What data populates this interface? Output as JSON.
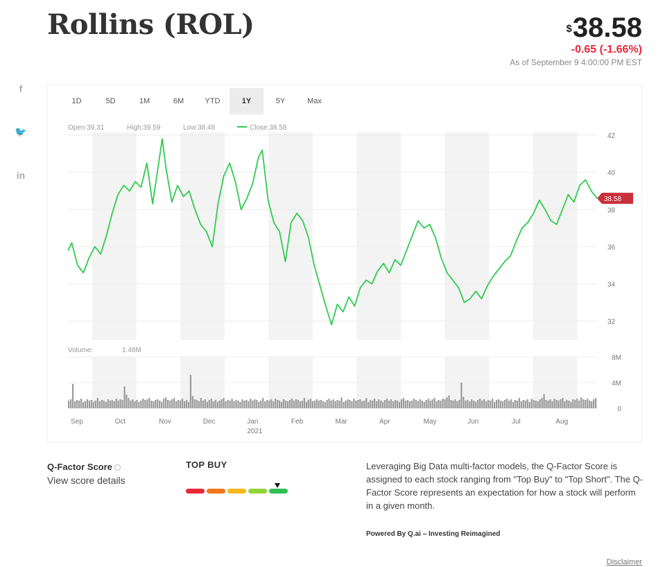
{
  "header": {
    "title": "Rollins (ROL)",
    "currency_symbol": "$",
    "price": "38.58",
    "change": "-0.65 (-1.66%)",
    "as_of": "As of September 9 4:00:00 PM EST"
  },
  "social": {
    "icons": [
      {
        "name": "facebook-icon",
        "glyph": "f"
      },
      {
        "name": "twitter-icon",
        "glyph": "🐦"
      },
      {
        "name": "linkedin-icon",
        "glyph": "in"
      }
    ]
  },
  "range_tabs": [
    "1D",
    "5D",
    "1M",
    "6M",
    "YTD",
    "1Y",
    "5Y",
    "Max"
  ],
  "active_range": "1Y",
  "legend": {
    "open": "Open:39.31",
    "high": "High:39.59",
    "low": "Low:38.48",
    "close": "Close:38.58",
    "volume_label": "Volume:",
    "volume_value": "1.48M"
  },
  "chart_data": {
    "type": "line",
    "price_axis": {
      "min": 31,
      "max": 42,
      "ticks": [
        32,
        34,
        36,
        38,
        40,
        42
      ]
    },
    "last_price_label": "38.58",
    "months": [
      "Sep",
      "Oct",
      "Nov",
      "Dec",
      "Jan",
      "Feb",
      "Mar",
      "Apr",
      "May",
      "Jun",
      "Jul",
      "Aug"
    ],
    "year_label": "2021",
    "price_series": {
      "color": "#2fcb4f",
      "points": [
        [
          0,
          35.8
        ],
        [
          2,
          36.2
        ],
        [
          5,
          35.0
        ],
        [
          8,
          34.6
        ],
        [
          11,
          35.4
        ],
        [
          14,
          36.0
        ],
        [
          17,
          35.6
        ],
        [
          20,
          36.6
        ],
        [
          23,
          37.8
        ],
        [
          26,
          38.8
        ],
        [
          29,
          39.3
        ],
        [
          32,
          39.0
        ],
        [
          35,
          39.5
        ],
        [
          38,
          39.2
        ],
        [
          41,
          40.5
        ],
        [
          44,
          38.3
        ],
        [
          47,
          40.4
        ],
        [
          49,
          41.8
        ],
        [
          51,
          40.2
        ],
        [
          54,
          38.4
        ],
        [
          57,
          39.3
        ],
        [
          60,
          38.7
        ],
        [
          63,
          39.0
        ],
        [
          66,
          38.0
        ],
        [
          69,
          37.2
        ],
        [
          72,
          36.8
        ],
        [
          75,
          36.0
        ],
        [
          78,
          38.3
        ],
        [
          81,
          39.8
        ],
        [
          84,
          40.5
        ],
        [
          87,
          39.5
        ],
        [
          90,
          38.0
        ],
        [
          93,
          38.6
        ],
        [
          96,
          39.4
        ],
        [
          99,
          40.8
        ],
        [
          101,
          41.2
        ],
        [
          104,
          38.5
        ],
        [
          107,
          37.3
        ],
        [
          110,
          36.8
        ],
        [
          113,
          35.2
        ],
        [
          116,
          37.3
        ],
        [
          119,
          37.8
        ],
        [
          122,
          37.4
        ],
        [
          125,
          36.5
        ],
        [
          128,
          35.0
        ],
        [
          131,
          33.9
        ],
        [
          134,
          32.8
        ],
        [
          137,
          31.8
        ],
        [
          140,
          32.9
        ],
        [
          143,
          32.5
        ],
        [
          146,
          33.3
        ],
        [
          149,
          32.8
        ],
        [
          152,
          33.8
        ],
        [
          155,
          34.2
        ],
        [
          158,
          34.0
        ],
        [
          161,
          34.7
        ],
        [
          164,
          35.1
        ],
        [
          167,
          34.6
        ],
        [
          170,
          35.3
        ],
        [
          173,
          35.0
        ],
        [
          176,
          35.8
        ],
        [
          179,
          36.6
        ],
        [
          182,
          37.4
        ],
        [
          185,
          37.0
        ],
        [
          188,
          37.2
        ],
        [
          191,
          36.5
        ],
        [
          194,
          35.4
        ],
        [
          197,
          34.6
        ],
        [
          200,
          34.2
        ],
        [
          203,
          33.8
        ],
        [
          206,
          33.0
        ],
        [
          209,
          33.2
        ],
        [
          212,
          33.6
        ],
        [
          215,
          33.2
        ],
        [
          218,
          33.9
        ],
        [
          221,
          34.4
        ],
        [
          224,
          34.8
        ],
        [
          227,
          35.2
        ],
        [
          230,
          35.5
        ],
        [
          233,
          36.3
        ],
        [
          236,
          37.0
        ],
        [
          239,
          37.3
        ],
        [
          242,
          37.8
        ],
        [
          245,
          38.5
        ],
        [
          248,
          38.0
        ],
        [
          251,
          37.4
        ],
        [
          254,
          37.2
        ],
        [
          257,
          38.0
        ],
        [
          260,
          38.8
        ],
        [
          263,
          38.4
        ],
        [
          266,
          39.3
        ],
        [
          269,
          39.6
        ],
        [
          272,
          39.0
        ],
        [
          275,
          38.6
        ]
      ]
    },
    "volume_axis": {
      "min": 0,
      "max": 8,
      "ticks": [
        0,
        4,
        8
      ],
      "tick_labels": [
        "0",
        "4M",
        "8M"
      ]
    },
    "volume_series": {
      "color": "#999999",
      "values": [
        1.2,
        1.4,
        3.8,
        1.1,
        1.3,
        1.2,
        1.5,
        1.0,
        1.1,
        1.4,
        1.2,
        1.3,
        1.0,
        1.2,
        1.6,
        1.1,
        1.3,
        1.2,
        1.0,
        1.4,
        1.2,
        1.3,
        1.1,
        1.5,
        1.2,
        1.4,
        1.3,
        3.4,
        2.1,
        1.6,
        1.2,
        1.4,
        1.1,
        1.3,
        1.0,
        1.2,
        1.5,
        1.3,
        1.4,
        1.6,
        1.2,
        1.1,
        1.3,
        1.4,
        1.2,
        1.0,
        1.5,
        1.7,
        1.3,
        1.2,
        1.4,
        1.6,
        1.1,
        1.3,
        1.2,
        1.5,
        1.1,
        1.3,
        1.0,
        5.2,
        1.9,
        1.4,
        1.3,
        1.1,
        1.6,
        1.2,
        1.4,
        1.0,
        1.3,
        1.5,
        1.1,
        1.3,
        1.0,
        1.2,
        1.4,
        1.6,
        1.1,
        1.3,
        1.2,
        1.5,
        1.1,
        1.3,
        1.2,
        1.0,
        1.4,
        1.2,
        1.3,
        1.1,
        1.5,
        1.2,
        1.4,
        1.3,
        1.0,
        1.2,
        1.6,
        1.1,
        1.3,
        1.2,
        1.4,
        1.1,
        1.5,
        1.3,
        1.2,
        1.0,
        1.4,
        1.2,
        1.1,
        1.3,
        1.5,
        1.2,
        1.4,
        1.3,
        1.1,
        1.2,
        1.6,
        1.0,
        1.3,
        1.5,
        1.1,
        1.2,
        1.4,
        1.2,
        1.3,
        1.1,
        1.0,
        1.3,
        1.5,
        1.2,
        1.4,
        1.1,
        1.3,
        1.2,
        1.7,
        1.0,
        1.2,
        1.4,
        1.3,
        1.1,
        1.5,
        1.2,
        1.3,
        1.4,
        1.1,
        1.2,
        1.6,
        1.0,
        1.3,
        1.2,
        1.5,
        1.1,
        1.4,
        1.2,
        1.0,
        1.3,
        1.5,
        1.2,
        1.4,
        1.1,
        1.3,
        1.2,
        1.0,
        1.4,
        1.6,
        1.2,
        1.3,
        1.1,
        1.2,
        1.5,
        1.3,
        1.1,
        1.4,
        1.2,
        1.0,
        1.3,
        1.5,
        1.2,
        1.4,
        1.6,
        1.1,
        1.3,
        1.2,
        1.5,
        1.4,
        1.7,
        2.0,
        1.3,
        1.2,
        1.4,
        1.1,
        1.3,
        4.0,
        1.8,
        1.2,
        1.3,
        1.1,
        1.4,
        1.2,
        1.0,
        1.3,
        1.5,
        1.2,
        1.4,
        1.1,
        1.3,
        1.2,
        1.5,
        1.0,
        1.3,
        1.4,
        1.2,
        1.1,
        1.3,
        1.5,
        1.2,
        1.4,
        1.0,
        1.3,
        1.2,
        1.6,
        1.1,
        1.3,
        1.2,
        1.4,
        1.0,
        1.5,
        1.3,
        1.2,
        1.1,
        1.4,
        1.6,
        2.2,
        1.3,
        1.2,
        1.4,
        1.1,
        1.5,
        1.3,
        1.2,
        1.4,
        1.6,
        1.1,
        1.3,
        1.2,
        1.0,
        1.4,
        1.3,
        1.5,
        1.2,
        1.7,
        1.4,
        1.3,
        1.5,
        1.2,
        1.1,
        1.4,
        1.6
      ]
    }
  },
  "qfactor": {
    "title": "Q-Factor Score",
    "link": "View score details",
    "rating": "TOP BUY",
    "scale_colors": [
      "#e8283a",
      "#f2771e",
      "#f5b71f",
      "#93d33a",
      "#2fbf56"
    ],
    "description": "Leveraging Big Data multi-factor models, the Q-Factor Score is assigned to each stock ranging from \"Top Buy\" to \"Top Short\". The Q-Factor Score represents an expectation for how a stock will perform in a given month.",
    "powered_by": "Powered By Q.ai – Investing Reimagined",
    "disclaimer": "Disclaimer"
  },
  "colors": {
    "negative": "#e8283a",
    "price_tag": "#c8303a",
    "band": "#f3f3f3"
  }
}
